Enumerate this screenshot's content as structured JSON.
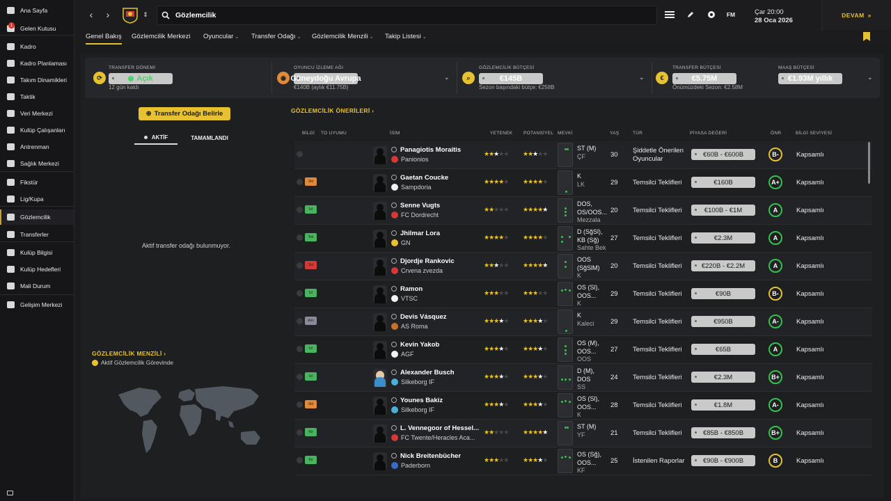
{
  "sidebar": {
    "items": [
      {
        "label": "Ana Sayfa",
        "icon": "home-icon",
        "name": "sidebar-item-ana-sayfa"
      },
      {
        "label": "Gelen Kutusu",
        "icon": "inbox-icon",
        "name": "sidebar-item-gelen-kutusu",
        "badge": "1"
      },
      {
        "label": "Kadro",
        "icon": "shirt-icon",
        "name": "sidebar-item-kadro"
      },
      {
        "label": "Kadro Planlaması",
        "icon": "planning-icon",
        "name": "sidebar-item-kadro-planlamasi"
      },
      {
        "label": "Takım Dinamikleri",
        "icon": "dynamics-icon",
        "name": "sidebar-item-takim-dinamikleri"
      },
      {
        "label": "Taktik",
        "icon": "tactics-icon",
        "name": "sidebar-item-taktik"
      },
      {
        "label": "Veri Merkezi",
        "icon": "data-hub-icon",
        "name": "sidebar-item-veri-merkezi"
      },
      {
        "label": "Kulüp Çalışanları",
        "icon": "staff-icon",
        "name": "sidebar-item-kulup-calisanlari"
      },
      {
        "label": "Antrenman",
        "icon": "training-icon",
        "name": "sidebar-item-antrenman"
      },
      {
        "label": "Sağlık Merkezi",
        "icon": "medical-icon",
        "name": "sidebar-item-saglik-merkezi"
      },
      {
        "label": "Fikstür",
        "icon": "calendar-icon",
        "name": "sidebar-item-fikstur"
      },
      {
        "label": "Lig/Kupa",
        "icon": "trophy-icon",
        "name": "sidebar-item-lig-kupa"
      },
      {
        "label": "Gözlemcilik",
        "icon": "scouting-icon",
        "name": "sidebar-item-gozlemcilik",
        "active": true
      },
      {
        "label": "Transferler",
        "icon": "transfer-icon",
        "name": "sidebar-item-transferler"
      },
      {
        "label": "Kulüp Bilgisi",
        "icon": "club-info-icon",
        "name": "sidebar-item-kulup-bilgisi"
      },
      {
        "label": "Kulüp Hedefleri",
        "icon": "club-goals-icon",
        "name": "sidebar-item-kulup-hedefleri"
      },
      {
        "label": "Mali Durum",
        "icon": "finance-icon",
        "name": "sidebar-item-mali-durum"
      },
      {
        "label": "Gelişim Merkezi",
        "icon": "development-icon",
        "name": "sidebar-item-gelisim-merkezi"
      }
    ]
  },
  "topbar": {
    "search_title": "Gözlemcilik",
    "fm_label": "FM",
    "date_day": "Çar 20:00",
    "date_full": "28 Oca 2026",
    "continue_label": "DEVAM"
  },
  "tabs": [
    {
      "label": "Genel Bakış",
      "active": true
    },
    {
      "label": "Gözlemcilik Merkezi"
    },
    {
      "label": "Oyuncular",
      "caret": true
    },
    {
      "label": "Transfer Odağı",
      "caret": true
    },
    {
      "label": "Gözlemcilik Menzili",
      "caret": true
    },
    {
      "label": "Takip Listesi",
      "caret": true
    }
  ],
  "summary": {
    "transfer_window": {
      "label": "TRANSFER DÖNEMİ",
      "value": "Açık",
      "sub": "12 gün kaldı"
    },
    "scouting_network": {
      "label": "OYUNCU İZLEME AĞI",
      "value": "Güneydoğu Avrupa",
      "sub": "€140B (aylık €11.75B)"
    },
    "scouting_budget": {
      "label": "GÖZLEMCİLİK BÜTÇESİ",
      "value": "€145B",
      "sub": "Sezon başındaki bütçe: €258B"
    },
    "transfer_budget": {
      "label": "TRANSFER BÜTÇESİ",
      "value": "€5.75M",
      "sub": "Önümüzdeki Sezon: €2.58M"
    },
    "wage_budget": {
      "label": "MAAŞ BÜTÇESİ",
      "value": "€1.93M yıllık"
    }
  },
  "left": {
    "set_focus_button": "Transfer Odağı Belirle",
    "tab_active": "AKTİF",
    "tab_done": "TAMAMLANDI",
    "empty_text": "Aktif transfer odağı bulunmuyor.",
    "range_title": "GÖZLEMCİLİK MENZİLİ",
    "range_legend": "Aktif Gözlemcilik Görevinde"
  },
  "recommendations": {
    "title": "GÖZLEMCİLİK ÖNERİLERİ",
    "headers": {
      "info": "BİLGİ",
      "to_fit": "TO UYUMU",
      "name": "İSİM",
      "ability": "YETENEK",
      "potential": "POTANSİYEL",
      "position": "MEVKİ",
      "age": "YAŞ",
      "type": "TÜR",
      "value": "PİYASA DEĞERİ",
      "rec": "ÖNR",
      "knowledge": "BİLGİ SEVİYESİ"
    },
    "rows": [
      {
        "name": "Panagiotis Moraitis",
        "club": "Panionios",
        "tag": "",
        "tag_color": "",
        "ability": 2.5,
        "potential": 2.5,
        "pos1": "ST (M)",
        "pos2": "ÇF",
        "age": "30",
        "type1": "Şiddetle Önerilen",
        "type2": "Oyuncular",
        "value": "€60B - €600B",
        "grade": "B-",
        "green": false,
        "knowledge": "Kapsamlı",
        "photo": false,
        "club_color": "#d23a3a"
      },
      {
        "name": "Gaetan Coucke",
        "club": "Sampdoria",
        "tag": "Skt",
        "tag_color": "#e08a3c",
        "ability": 4,
        "potential": 4,
        "pos1": "K",
        "pos2": "LK",
        "age": "29",
        "type1": "Temsilci Teklifleri",
        "type2": "",
        "value": "€160B",
        "grade": "A+",
        "green": true,
        "knowledge": "Kapsamlı",
        "photo": false,
        "club_color": "#f2f2f2"
      },
      {
        "name": "Senne Vugts",
        "club": "FC Dordrecht",
        "tag": "İzl",
        "tag_color": "#4ab360",
        "ability": 2,
        "potential": 4.5,
        "pos1": "DOS,",
        "pos1b": "OS/OOS...",
        "pos2": "Mezzala",
        "age": "20",
        "type1": "Temsilci Teklifleri",
        "type2": "",
        "value": "€100B - €1M",
        "grade": "A",
        "green": true,
        "knowledge": "Kapsamlı",
        "photo": false,
        "club_color": "#d23a3a"
      },
      {
        "name": "Jhilmar Lora",
        "club": "GN",
        "tag": "Tek",
        "tag_color": "#4ab360",
        "ability": 4,
        "potential": 4,
        "pos1": "D (SğSl),",
        "pos1b": "KB (Sğ)",
        "pos2": "Sahte Bek",
        "age": "27",
        "type1": "Temsilci Teklifleri",
        "type2": "",
        "value": "€2.3M",
        "grade": "A",
        "green": true,
        "knowledge": "Kapsamlı",
        "photo": false,
        "club_color": "#e6c232"
      },
      {
        "name": "Djordje Rankovic",
        "club": "Crvena zvezda",
        "tag": "Skt",
        "tag_color": "#d23a3a",
        "ability": 2.5,
        "potential": 4.5,
        "pos1": "OOS",
        "pos1b": "(SğSlM)",
        "pos2": "K",
        "age": "20",
        "type1": "Temsilci Teklifleri",
        "type2": "",
        "value": "€220B - €2.2M",
        "grade": "A",
        "green": true,
        "knowledge": "Kapsamlı",
        "photo": false,
        "club_color": "#d23a3a"
      },
      {
        "name": "Ramon",
        "club": "VTSC",
        "tag": "İzl",
        "tag_color": "#4ab360",
        "ability": 3,
        "potential": 3,
        "pos1": "OS (Sl),",
        "pos1b": "OOS...",
        "pos2": "K",
        "age": "29",
        "type1": "Temsilci Teklifleri",
        "type2": "",
        "value": "€90B",
        "grade": "B-",
        "green": false,
        "knowledge": "Kapsamlı",
        "photo": false,
        "club_color": "#f2f2f2"
      },
      {
        "name": "Devis Vásquez",
        "club": "AS Roma",
        "tag": "Alın",
        "tag_color": "#8a8a9a",
        "ability": 3.5,
        "potential": 3.5,
        "pos1": "K",
        "pos2": "Kaleci",
        "age": "29",
        "type1": "Temsilci Teklifleri",
        "type2": "",
        "value": "€950B",
        "grade": "A-",
        "green": true,
        "knowledge": "Kapsamlı",
        "photo": false,
        "club_color": "#c8702a"
      },
      {
        "name": "Kevin Yakob",
        "club": "AGF",
        "tag": "İzl",
        "tag_color": "#4ab360",
        "ability": 3.5,
        "potential": 3.5,
        "pos1": "OS (M),",
        "pos1b": "OOS...",
        "pos2": "OOS",
        "age": "27",
        "type1": "Temsilci Teklifleri",
        "type2": "",
        "value": "€65B",
        "grade": "A",
        "green": true,
        "knowledge": "Kapsamlı",
        "photo": false,
        "club_color": "#f2f2f2"
      },
      {
        "name": "Alexander Busch",
        "club": "Silkeborg IF",
        "tag": "İzl",
        "tag_color": "#4ab360",
        "ability": 3.5,
        "potential": 3.5,
        "pos1": "D (M),",
        "pos1b": "DOS",
        "pos2": "SS",
        "age": "24",
        "type1": "Temsilci Teklifleri",
        "type2": "",
        "value": "€2.3M",
        "grade": "B+",
        "green": true,
        "knowledge": "Kapsamlı",
        "photo": true,
        "club_color": "#4ab0d8"
      },
      {
        "name": "Younes Bakiz",
        "club": "Silkeborg IF",
        "tag": "Skt",
        "tag_color": "#e08a3c",
        "ability": 3.5,
        "potential": 3.5,
        "pos1": "OS (Sl),",
        "pos1b": "OOS...",
        "pos2": "K",
        "age": "28",
        "type1": "Temsilci Teklifleri",
        "type2": "",
        "value": "€1.8M",
        "grade": "A-",
        "green": true,
        "knowledge": "Kapsamlı",
        "photo": false,
        "club_color": "#4ab0d8"
      },
      {
        "name": "L. Vennegoor of Hessel...",
        "club": "FC Twente/Heracles Aca...",
        "tag": "Kir",
        "tag_color": "#4ab360",
        "ability": 2,
        "potential": 4.5,
        "pos1": "ST (M)",
        "pos2": "YF",
        "age": "21",
        "type1": "Temsilci Teklifleri",
        "type2": "",
        "value": "€85B - €850B",
        "grade": "B+",
        "green": true,
        "knowledge": "Kapsamlı",
        "photo": false,
        "club_color": "#d23a3a"
      },
      {
        "name": "Nick Breitenbücher",
        "club": "Paderborn",
        "tag": "Kir",
        "tag_color": "#4ab360",
        "ability": 3,
        "potential": 3.5,
        "pos1": "OS (Sğ),",
        "pos1b": "OOS...",
        "pos2": "KF",
        "age": "25",
        "type1": "İstenilen Raporlar",
        "type2": "",
        "value": "€90B - €900B",
        "grade": "B",
        "green": false,
        "knowledge": "Kapsamlı",
        "photo": false,
        "club_color": "#3a6ac8"
      }
    ]
  }
}
